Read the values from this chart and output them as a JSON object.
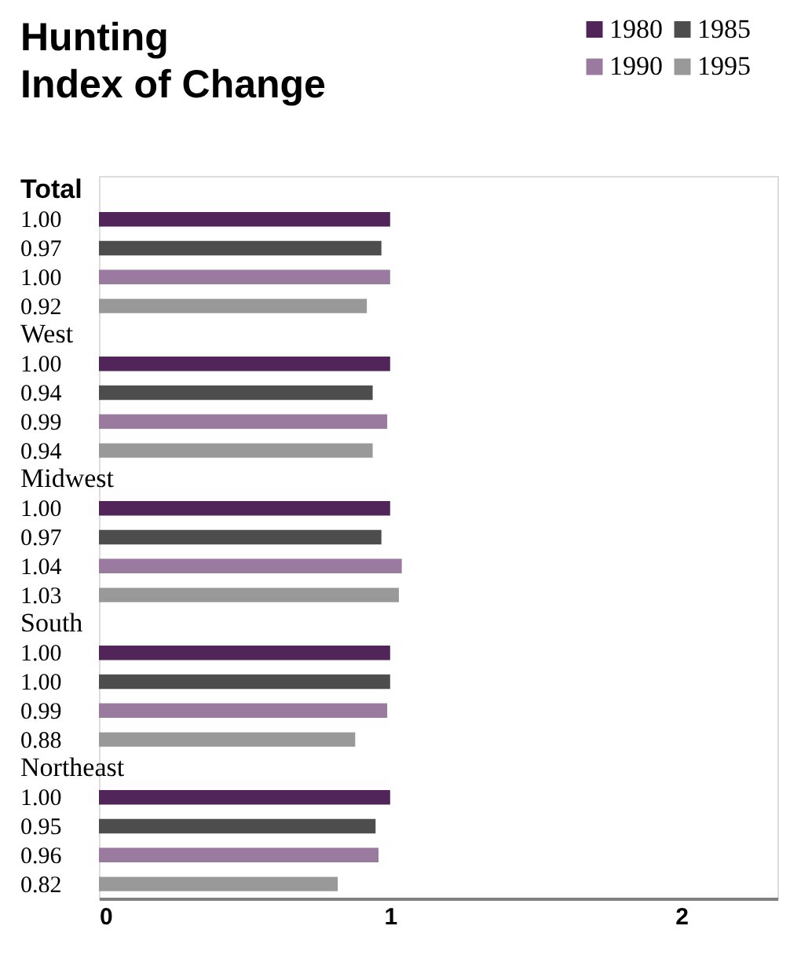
{
  "chart_data": {
    "type": "bar",
    "orientation": "horizontal",
    "title": "Hunting\nIndex of Change",
    "categories": [
      "Total",
      "West",
      "Midwest",
      "South",
      "Northeast"
    ],
    "series": [
      {
        "name": "1980",
        "color": "#52255a",
        "values": [
          1.0,
          1.0,
          1.0,
          1.0,
          1.0
        ],
        "value_labels": [
          "1.00",
          "1.00",
          "1.00",
          "1.00",
          "1.00"
        ]
      },
      {
        "name": "1985",
        "color": "#4d4d4d",
        "values": [
          0.97,
          0.94,
          0.97,
          1.0,
          0.95
        ],
        "value_labels": [
          "0.97",
          "0.94",
          "0.97",
          "1.00",
          "0.95"
        ]
      },
      {
        "name": "1990",
        "color": "#9b7aa0",
        "values": [
          1.0,
          0.99,
          1.04,
          0.99,
          0.96
        ],
        "value_labels": [
          "1.00",
          "0.99",
          "1.04",
          "0.99",
          "0.96"
        ]
      },
      {
        "name": "1995",
        "color": "#999999",
        "values": [
          0.92,
          0.94,
          1.03,
          0.88,
          0.82
        ],
        "value_labels": [
          "0.92",
          "0.94",
          "1.03",
          "0.88",
          "0.82"
        ]
      }
    ],
    "xlim": [
      0,
      2.33
    ],
    "xticks": [
      0,
      1,
      2
    ],
    "legend": "top right",
    "grid": false
  }
}
